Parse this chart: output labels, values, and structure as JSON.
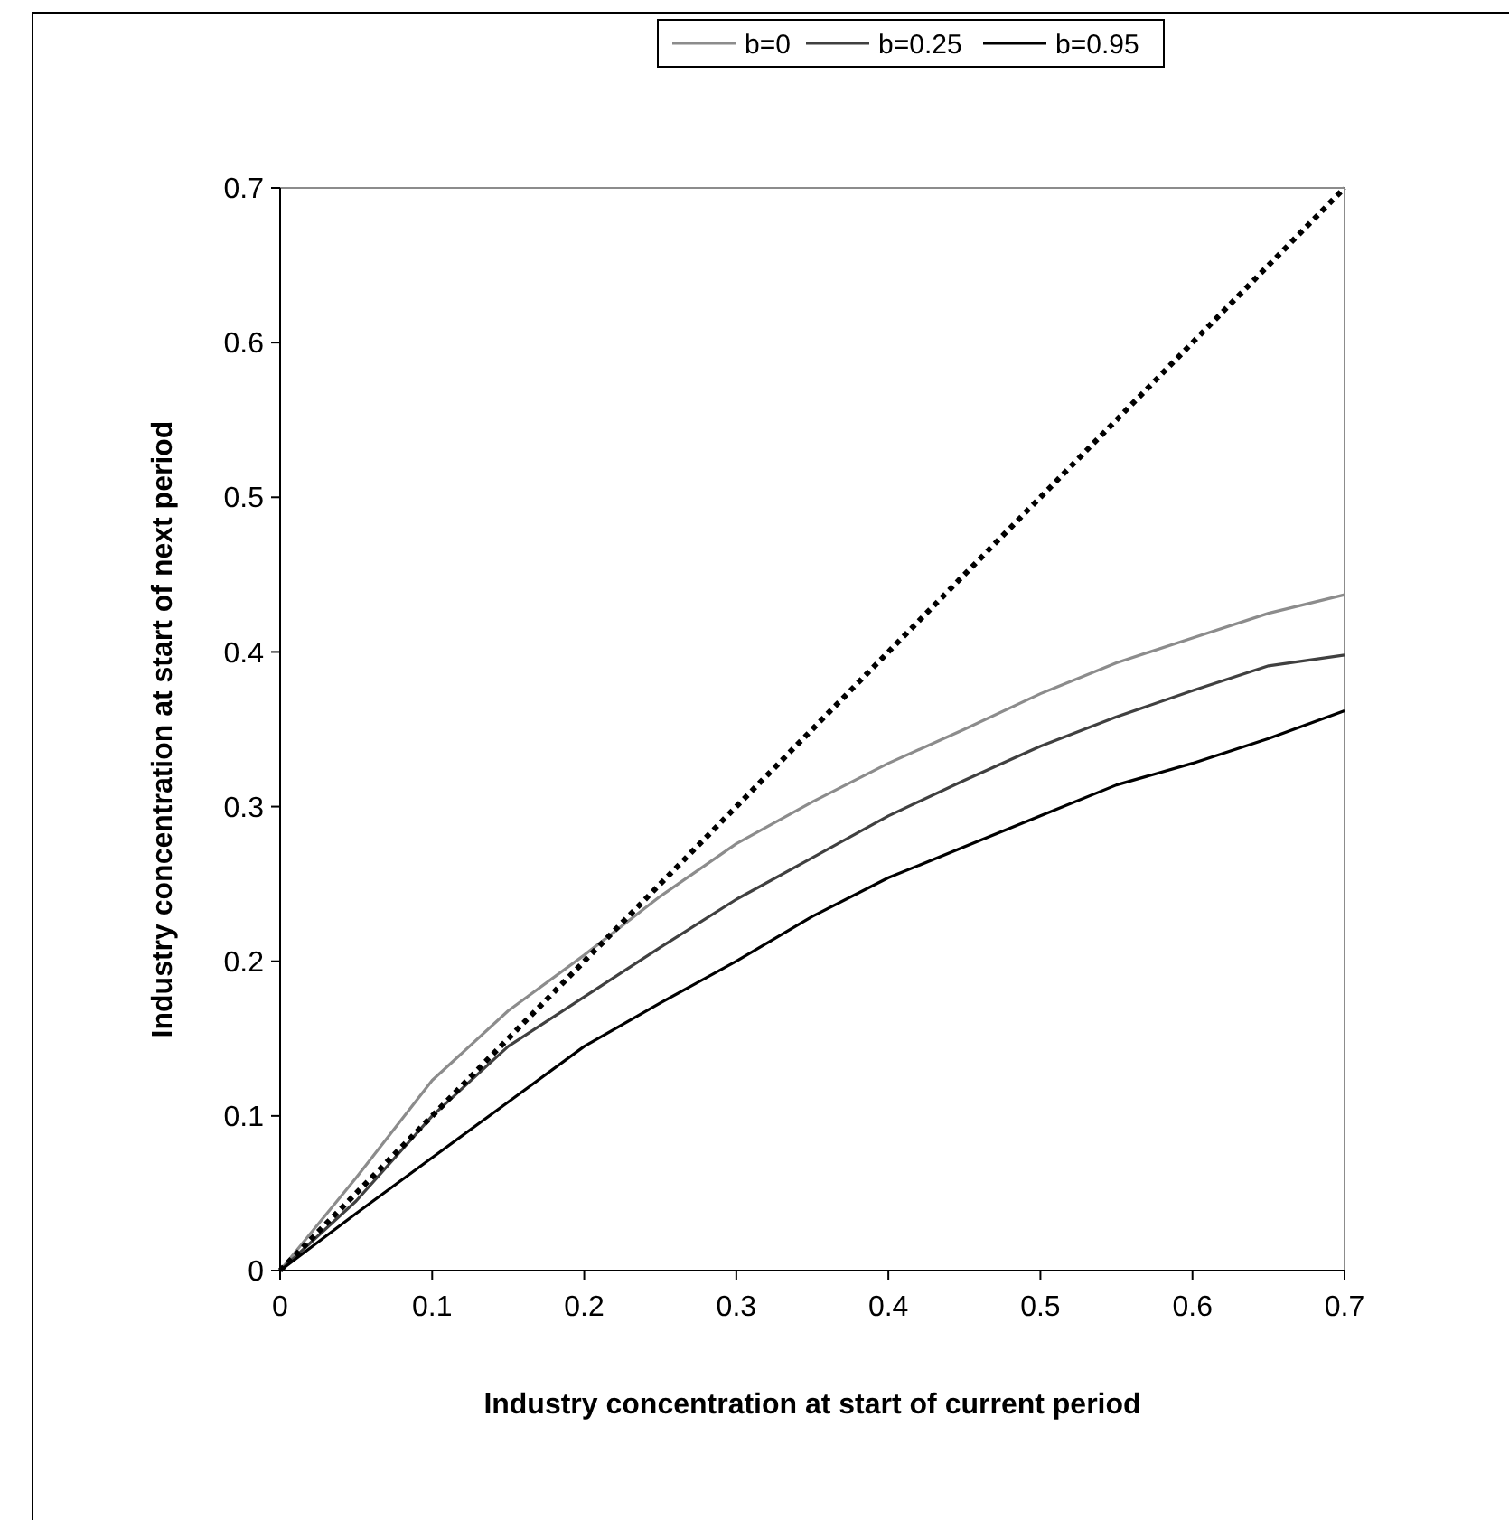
{
  "chart_data": {
    "type": "line",
    "xlabel": "Industry concentration at start of current period",
    "ylabel": "Industry concentration at start of next period",
    "x": [
      0,
      0.05,
      0.1,
      0.15,
      0.2,
      0.25,
      0.3,
      0.35,
      0.4,
      0.45,
      0.5,
      0.55,
      0.6,
      0.65,
      0.7
    ],
    "series": [
      {
        "name": "b=0",
        "color": "#8c8c8c",
        "values": [
          0,
          0.06,
          0.123,
          0.168,
          0.204,
          0.242,
          0.276,
          0.303,
          0.328,
          0.35,
          0.373,
          0.393,
          0.409,
          0.425,
          0.437
        ]
      },
      {
        "name": "b=0.25",
        "color": "#404040",
        "values": [
          0,
          0.045,
          0.1,
          0.145,
          0.177,
          0.209,
          0.24,
          0.267,
          0.294,
          0.317,
          0.339,
          0.358,
          0.375,
          0.391,
          0.398
        ]
      },
      {
        "name": "b=0.95",
        "color": "#000000",
        "values": [
          0,
          0.037,
          0.073,
          0.109,
          0.145,
          0.173,
          0.2,
          0.229,
          0.254,
          0.274,
          0.294,
          0.314,
          0.328,
          0.344,
          0.362
        ]
      },
      {
        "color": "#000000",
        "x": [
          0,
          0.7
        ],
        "values": [
          0,
          0.7
        ],
        "line_style": "dotted"
      }
    ],
    "xlim": [
      0,
      0.7
    ],
    "ylim": [
      0,
      0.7
    ],
    "xticks": [
      0,
      0.1,
      0.2,
      0.3,
      0.4,
      0.5,
      0.6,
      0.7
    ],
    "yticks": [
      0,
      0.1,
      0.2,
      0.3,
      0.4,
      0.5,
      0.6,
      0.7
    ],
    "grid": false,
    "legend": "top",
    "marker": "none",
    "line_style": "solid"
  }
}
